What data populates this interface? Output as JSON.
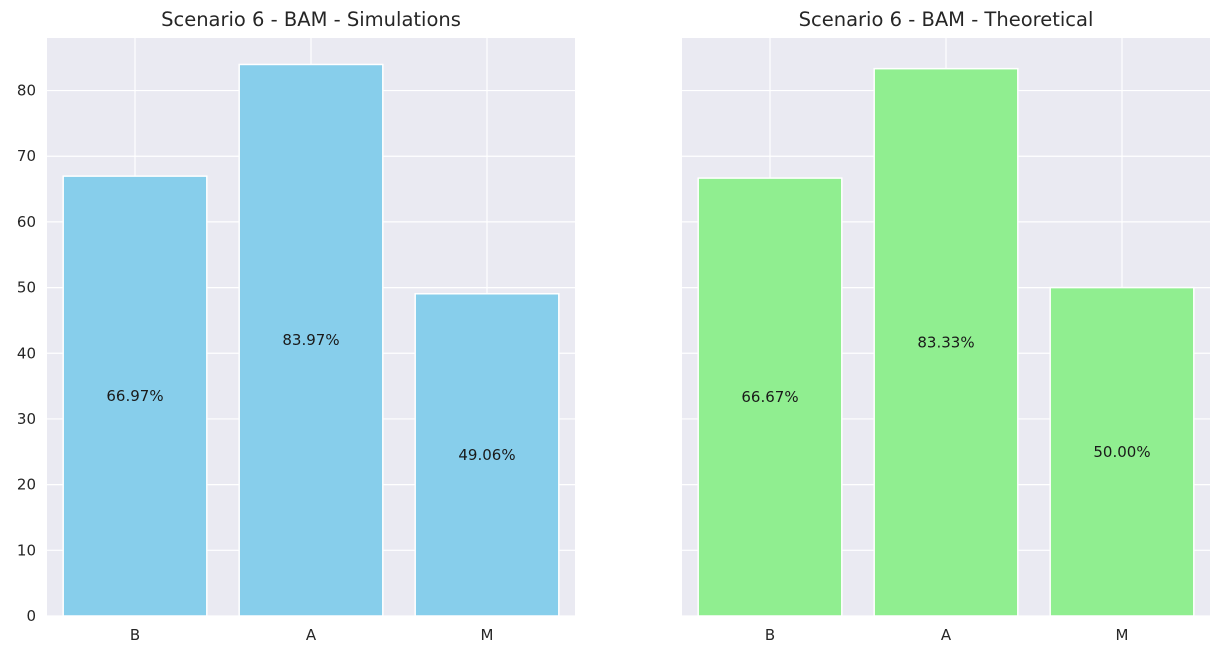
{
  "chart_data": [
    {
      "type": "bar",
      "title": "Scenario 6 - BAM - Simulations",
      "categories": [
        "B",
        "A",
        "M"
      ],
      "values": [
        66.97,
        83.97,
        49.06
      ],
      "data_labels": [
        "66.97%",
        "83.97%",
        "49.06%"
      ],
      "ylim": [
        0,
        88
      ],
      "yticks": [
        0,
        10,
        20,
        30,
        40,
        50,
        60,
        70,
        80
      ],
      "color": "#87ceeb",
      "grid": true
    },
    {
      "type": "bar",
      "title": "Scenario 6 - BAM - Theoretical",
      "categories": [
        "B",
        "A",
        "M"
      ],
      "values": [
        66.67,
        83.33,
        50.0
      ],
      "data_labels": [
        "66.67%",
        "83.33%",
        "50.00%"
      ],
      "ylim": [
        0,
        88
      ],
      "yticks": [
        0,
        10,
        20,
        30,
        40,
        50,
        60,
        70,
        80
      ],
      "color": "#90ee90",
      "grid": true
    }
  ]
}
